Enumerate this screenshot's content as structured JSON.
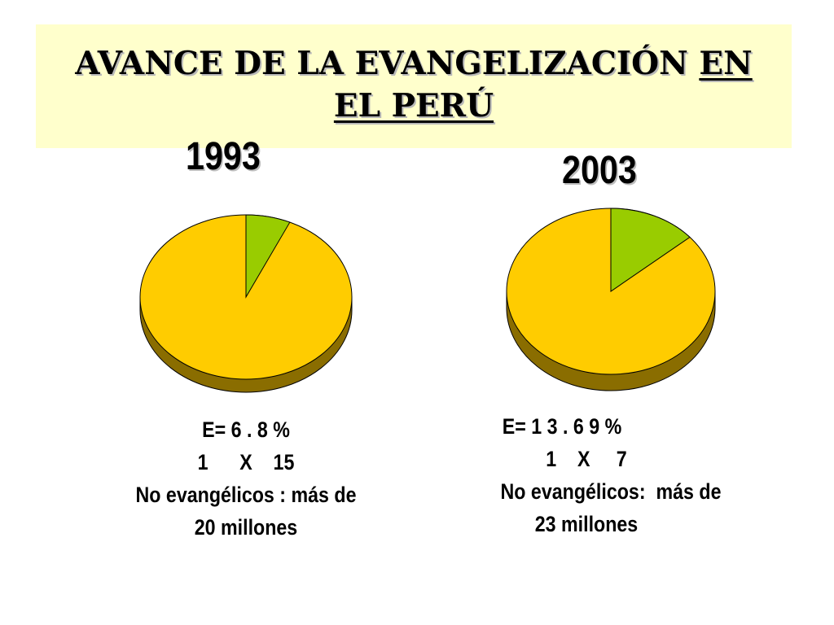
{
  "slide": {
    "title_part1": "AVANCE DE LA EVANGELIZACIÓN",
    "title_part2": "EN",
    "title_part3": "EL PERÚ"
  },
  "chart_data": [
    {
      "type": "pie",
      "title": "1993",
      "slices": [
        {
          "value": 6.8,
          "color": "#99cc00"
        },
        {
          "value": 93.2,
          "color": "#ffcc00"
        }
      ],
      "caption": {
        "line1": "E= 6 . 8 %",
        "line2": "1      X    15",
        "line3": "No evangélicos : más de",
        "line4": "20 millones"
      }
    },
    {
      "type": "pie",
      "title": "2003",
      "slices": [
        {
          "value": 13.69,
          "color": "#99cc00"
        },
        {
          "value": 86.31,
          "color": "#ffcc00"
        }
      ],
      "caption": {
        "line1": "E= 1 3 . 6 9 %",
        "line2": "1    X     7",
        "line3": "No evangélicos:  más de",
        "line4": "23 millones"
      }
    }
  ],
  "colors": {
    "title_background": "#ffffcc",
    "evangelical": "#99cc00",
    "non_evangelical": "#ffcc00",
    "pie_side": "#8a6d00"
  }
}
